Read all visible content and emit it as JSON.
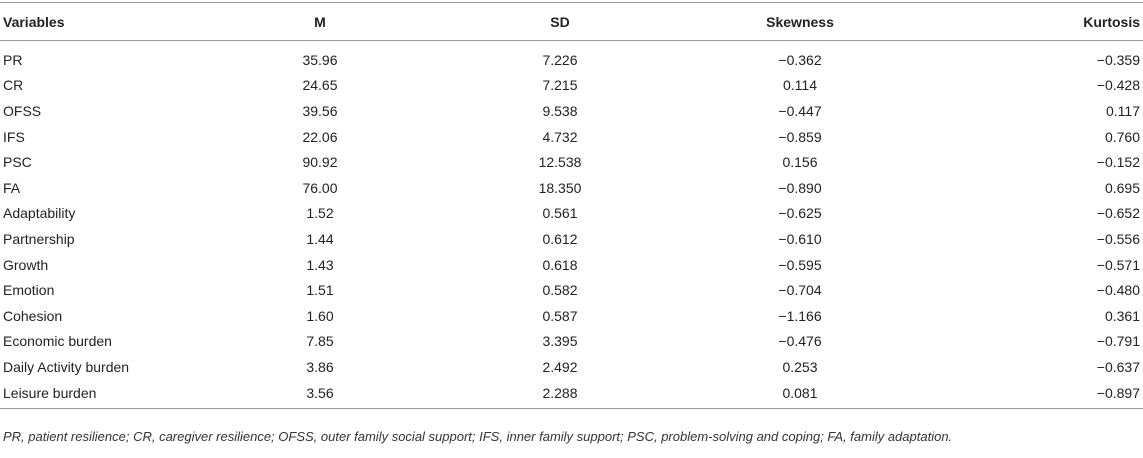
{
  "table": {
    "headers": [
      "Variables",
      "M",
      "SD",
      "Skewness",
      "Kurtosis"
    ],
    "rows": [
      [
        "PR",
        "35.96",
        "7.226",
        "−0.362",
        "−0.359"
      ],
      [
        "CR",
        "24.65",
        "7.215",
        "0.114",
        "−0.428"
      ],
      [
        "OFSS",
        "39.56",
        "9.538",
        "−0.447",
        "0.117"
      ],
      [
        "IFS",
        "22.06",
        "4.732",
        "−0.859",
        "0.760"
      ],
      [
        "PSC",
        "90.92",
        "12.538",
        "0.156",
        "−0.152"
      ],
      [
        "FA",
        "76.00",
        "18.350",
        "−0.890",
        "0.695"
      ],
      [
        "Adaptability",
        "1.52",
        "0.561",
        "−0.625",
        "−0.652"
      ],
      [
        "Partnership",
        "1.44",
        "0.612",
        "−0.610",
        "−0.556"
      ],
      [
        "Growth",
        "1.43",
        "0.618",
        "−0.595",
        "−0.571"
      ],
      [
        "Emotion",
        "1.51",
        "0.582",
        "−0.704",
        "−0.480"
      ],
      [
        "Cohesion",
        "1.60",
        "0.587",
        "−1.166",
        "0.361"
      ],
      [
        "Economic burden",
        "7.85",
        "3.395",
        "−0.476",
        "−0.791"
      ],
      [
        "Daily Activity burden",
        "3.86",
        "2.492",
        "0.253",
        "−0.637"
      ],
      [
        "Leisure burden",
        "3.56",
        "2.288",
        "0.081",
        "−0.897"
      ]
    ]
  },
  "footnote": "PR, patient resilience; CR, caregiver resilience; OFSS, outer family social support; IFS, inner family support; PSC, problem-solving and coping; FA, family adaptation."
}
